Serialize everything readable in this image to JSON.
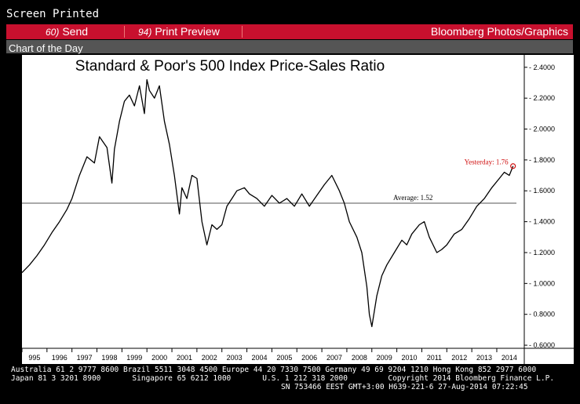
{
  "header": {
    "screen_title": "Screen Printed",
    "send_num": "60)",
    "send_label": "Send",
    "print_num": "94)",
    "print_label": "Print Preview",
    "brand": "Bloomberg Photos/Graphics",
    "subtitle": "Chart of the Day"
  },
  "colors": {
    "accent_bar": "#c8102e",
    "sub_bar": "#555555",
    "line": "#000000",
    "highlight": "#d01010"
  },
  "chart_data": {
    "type": "line",
    "title": "Standard & Poor's 500 Index Price-Sales Ratio",
    "xlabel": "",
    "ylabel": "",
    "x_tick_labels": [
      "995",
      "1996",
      "1997",
      "1998",
      "1999",
      "2000",
      "2001",
      "2002",
      "2003",
      "2004",
      "2005",
      "2006",
      "2007",
      "2008",
      "2009",
      "2010",
      "2011",
      "2012",
      "2013",
      "2014"
    ],
    "y_tick_labels": [
      "2.4000",
      "2.2000",
      "2.0000",
      "1.8000",
      "1.6000",
      "1.4000",
      "1.2000",
      "1.0000",
      "0.8000",
      "0.6000"
    ],
    "ylim": [
      0.58,
      2.47
    ],
    "xlim": [
      1995.0,
      2015.1
    ],
    "average": {
      "label": "Average: 1.52",
      "value": 1.52
    },
    "last_point": {
      "label": "Yesterday: 1.76",
      "value": 1.76
    },
    "series": [
      {
        "x": [
          1995.0,
          1995.3,
          1995.6,
          1995.9,
          1996.2,
          1996.5,
          1996.8,
          1997.0,
          1997.3,
          1997.6,
          1997.9,
          1998.1,
          1998.4,
          1998.6,
          1998.7,
          1998.9,
          1999.1,
          1999.3,
          1999.5,
          1999.7,
          1999.9,
          2000.0,
          2000.1,
          2000.3,
          2000.5,
          2000.7,
          2000.9,
          2001.1,
          2001.3,
          2001.4,
          2001.6,
          2001.8,
          2002.0,
          2002.2,
          2002.4,
          2002.6,
          2002.8,
          2003.0,
          2003.2,
          2003.4,
          2003.6,
          2003.9,
          2004.1,
          2004.4,
          2004.7,
          2005.0,
          2005.3,
          2005.6,
          2005.9,
          2006.2,
          2006.5,
          2006.8,
          2007.1,
          2007.4,
          2007.7,
          2007.9,
          2008.1,
          2008.4,
          2008.6,
          2008.8,
          2008.9,
          2009.0,
          2009.2,
          2009.4,
          2009.6,
          2009.9,
          2010.2,
          2010.4,
          2010.6,
          2010.9,
          2011.1,
          2011.3,
          2011.6,
          2011.8,
          2012.0,
          2012.3,
          2012.6,
          2012.9,
          2013.2,
          2013.5,
          2013.8,
          2014.1,
          2014.3,
          2014.5,
          2014.65
        ],
        "y": [
          1.07,
          1.12,
          1.18,
          1.25,
          1.33,
          1.4,
          1.48,
          1.55,
          1.7,
          1.82,
          1.78,
          1.95,
          1.88,
          1.65,
          1.87,
          2.05,
          2.18,
          2.22,
          2.15,
          2.28,
          2.1,
          2.32,
          2.25,
          2.2,
          2.28,
          2.05,
          1.9,
          1.7,
          1.45,
          1.62,
          1.55,
          1.7,
          1.68,
          1.4,
          1.25,
          1.38,
          1.35,
          1.38,
          1.5,
          1.55,
          1.6,
          1.62,
          1.58,
          1.55,
          1.5,
          1.57,
          1.52,
          1.55,
          1.5,
          1.58,
          1.5,
          1.57,
          1.64,
          1.7,
          1.6,
          1.52,
          1.4,
          1.3,
          1.2,
          0.98,
          0.8,
          0.72,
          0.92,
          1.05,
          1.12,
          1.2,
          1.28,
          1.25,
          1.32,
          1.38,
          1.4,
          1.3,
          1.2,
          1.22,
          1.25,
          1.32,
          1.35,
          1.42,
          1.5,
          1.55,
          1.62,
          1.68,
          1.72,
          1.7,
          1.76
        ]
      }
    ]
  },
  "footer": {
    "line1": "Australia 61 2 9777 8600 Brazil 5511 3048 4500 Europe 44 20 7330 7500 Germany 49 69 9204 1210 Hong Kong 852 2977 6000",
    "line2": "Japan 81 3 3201 8900       Singapore 65 6212 1000       U.S. 1 212 318 2000         Copyright 2014 Bloomberg Finance L.P.",
    "line3": "SN 753466 EEST GMT+3:00 H639-221-6 27-Aug-2014 07:22:45"
  }
}
